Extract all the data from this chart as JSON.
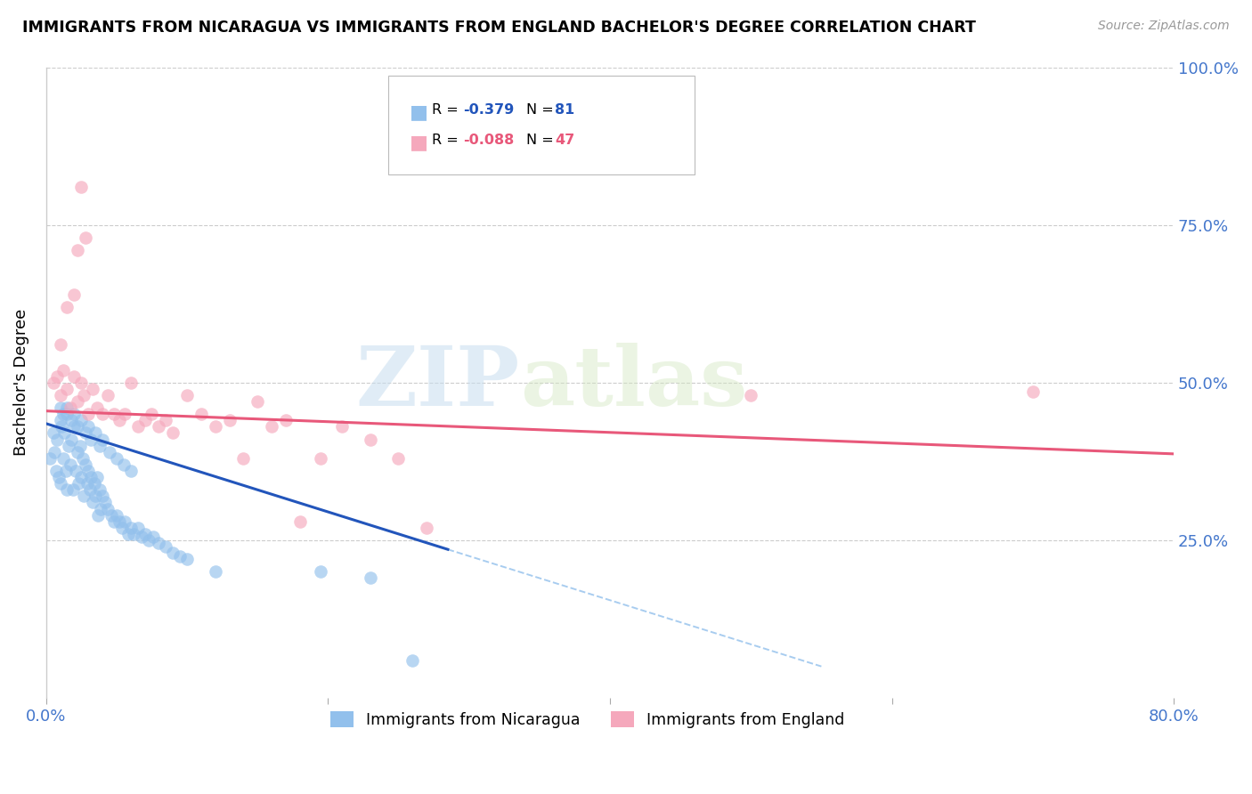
{
  "title": "IMMIGRANTS FROM NICARAGUA VS IMMIGRANTS FROM ENGLAND BACHELOR'S DEGREE CORRELATION CHART",
  "source": "Source: ZipAtlas.com",
  "ylabel": "Bachelor's Degree",
  "xlim": [
    0.0,
    0.8
  ],
  "ylim": [
    0.0,
    1.0
  ],
  "legend_label1": "Immigrants from Nicaragua",
  "legend_label2": "Immigrants from England",
  "r1": -0.379,
  "n1": 81,
  "r2": -0.088,
  "n2": 47,
  "color_blue": "#92C0EC",
  "color_pink": "#F5A8BC",
  "line_blue": "#2255BB",
  "line_pink": "#E8587A",
  "watermark_zip": "ZIP",
  "watermark_atlas": "atlas",
  "blue_intercept": 0.435,
  "blue_slope": -0.7,
  "pink_intercept": 0.455,
  "pink_slope": -0.085,
  "blue_scatter_x": [
    0.003,
    0.005,
    0.006,
    0.007,
    0.008,
    0.009,
    0.01,
    0.01,
    0.011,
    0.012,
    0.013,
    0.014,
    0.015,
    0.015,
    0.016,
    0.017,
    0.018,
    0.019,
    0.02,
    0.021,
    0.022,
    0.023,
    0.024,
    0.025,
    0.026,
    0.027,
    0.028,
    0.029,
    0.03,
    0.031,
    0.032,
    0.033,
    0.034,
    0.035,
    0.036,
    0.037,
    0.038,
    0.039,
    0.04,
    0.042,
    0.044,
    0.046,
    0.048,
    0.05,
    0.052,
    0.054,
    0.056,
    0.058,
    0.06,
    0.062,
    0.065,
    0.068,
    0.07,
    0.073,
    0.076,
    0.08,
    0.085,
    0.09,
    0.095,
    0.1,
    0.01,
    0.012,
    0.015,
    0.018,
    0.02,
    0.022,
    0.025,
    0.028,
    0.03,
    0.032,
    0.035,
    0.038,
    0.04,
    0.045,
    0.05,
    0.055,
    0.06,
    0.12,
    0.195,
    0.23,
    0.26
  ],
  "blue_scatter_y": [
    0.38,
    0.42,
    0.39,
    0.36,
    0.41,
    0.35,
    0.44,
    0.34,
    0.43,
    0.38,
    0.42,
    0.36,
    0.45,
    0.33,
    0.4,
    0.37,
    0.41,
    0.33,
    0.43,
    0.36,
    0.39,
    0.34,
    0.4,
    0.35,
    0.38,
    0.32,
    0.37,
    0.34,
    0.36,
    0.33,
    0.35,
    0.31,
    0.34,
    0.32,
    0.35,
    0.29,
    0.33,
    0.3,
    0.32,
    0.31,
    0.3,
    0.29,
    0.28,
    0.29,
    0.28,
    0.27,
    0.28,
    0.26,
    0.27,
    0.26,
    0.27,
    0.255,
    0.26,
    0.25,
    0.255,
    0.245,
    0.24,
    0.23,
    0.225,
    0.22,
    0.46,
    0.45,
    0.46,
    0.44,
    0.45,
    0.43,
    0.44,
    0.42,
    0.43,
    0.41,
    0.42,
    0.4,
    0.41,
    0.39,
    0.38,
    0.37,
    0.36,
    0.2,
    0.2,
    0.19,
    0.06
  ],
  "pink_scatter_x": [
    0.005,
    0.008,
    0.01,
    0.012,
    0.015,
    0.017,
    0.02,
    0.022,
    0.025,
    0.027,
    0.03,
    0.033,
    0.036,
    0.04,
    0.044,
    0.048,
    0.052,
    0.056,
    0.06,
    0.065,
    0.07,
    0.075,
    0.08,
    0.085,
    0.09,
    0.1,
    0.11,
    0.12,
    0.13,
    0.14,
    0.15,
    0.16,
    0.17,
    0.18,
    0.195,
    0.21,
    0.23,
    0.25,
    0.27,
    0.01,
    0.015,
    0.02,
    0.025,
    0.5,
    0.7,
    0.022,
    0.028
  ],
  "pink_scatter_y": [
    0.5,
    0.51,
    0.48,
    0.52,
    0.49,
    0.46,
    0.51,
    0.47,
    0.5,
    0.48,
    0.45,
    0.49,
    0.46,
    0.45,
    0.48,
    0.45,
    0.44,
    0.45,
    0.5,
    0.43,
    0.44,
    0.45,
    0.43,
    0.44,
    0.42,
    0.48,
    0.45,
    0.43,
    0.44,
    0.38,
    0.47,
    0.43,
    0.44,
    0.28,
    0.38,
    0.43,
    0.41,
    0.38,
    0.27,
    0.56,
    0.62,
    0.64,
    0.81,
    0.48,
    0.485,
    0.71,
    0.73
  ]
}
